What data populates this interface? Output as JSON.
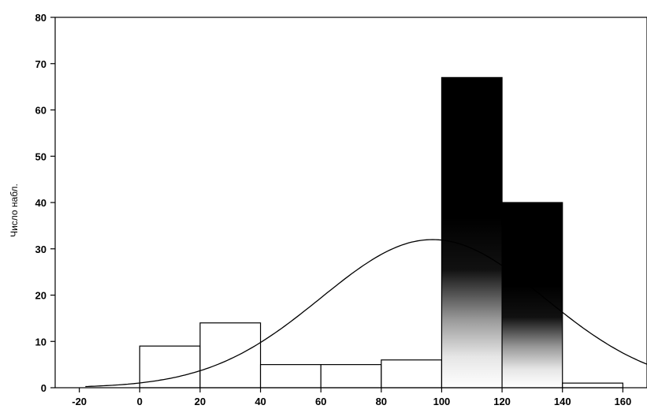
{
  "chart_data": {
    "type": "bar",
    "title": "",
    "xlabel": "",
    "ylabel": "Число набл.",
    "xlim": [
      -28,
      168
    ],
    "ylim": [
      0,
      80
    ],
    "x_ticks": [
      -20,
      0,
      20,
      40,
      60,
      80,
      100,
      120,
      140,
      160
    ],
    "y_ticks": [
      0,
      10,
      20,
      30,
      40,
      50,
      60,
      70,
      80
    ],
    "bins": [
      {
        "from": 0,
        "to": 20,
        "count": 9
      },
      {
        "from": 20,
        "to": 40,
        "count": 14
      },
      {
        "from": 40,
        "to": 60,
        "count": 5
      },
      {
        "from": 60,
        "to": 80,
        "count": 5
      },
      {
        "from": 80,
        "to": 100,
        "count": 6
      },
      {
        "from": 100,
        "to": 120,
        "count": 67
      },
      {
        "from": 120,
        "to": 140,
        "count": 40
      },
      {
        "from": 140,
        "to": 160,
        "count": 1
      }
    ],
    "normal_curve": {
      "mean": 97,
      "sd": 37,
      "peak": 32
    },
    "grid": false,
    "legend": "none"
  }
}
